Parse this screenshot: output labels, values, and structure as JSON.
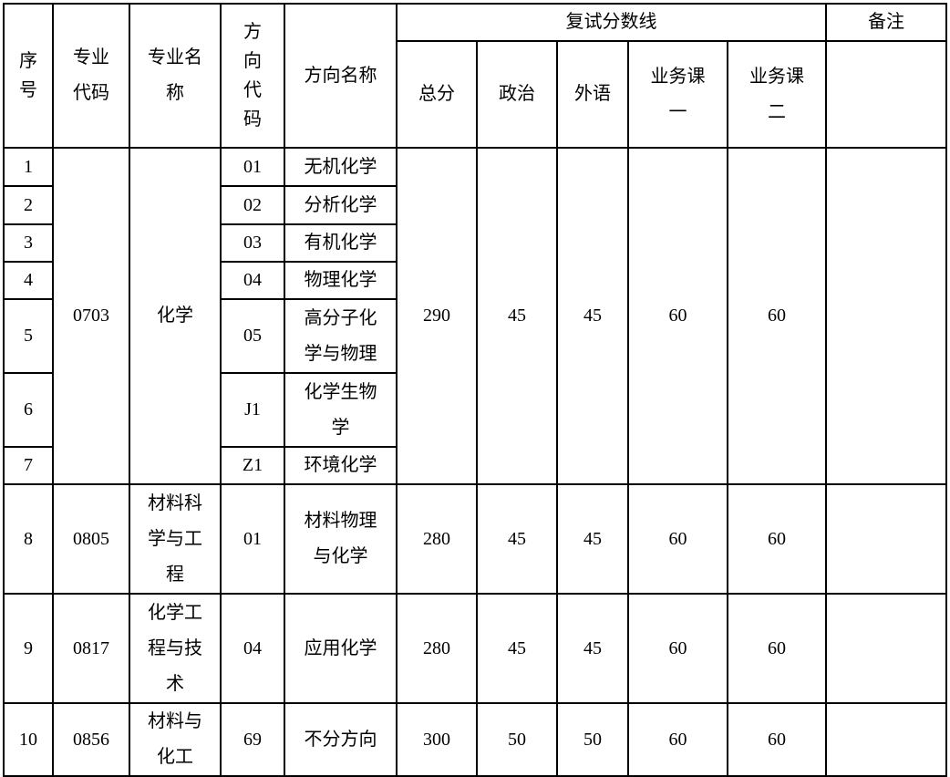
{
  "header": {
    "seq": "序\n号",
    "major_code": "专业\n代码",
    "major_name": "专业名\n称",
    "dir_code": "方\n向\n代\n码",
    "dir_name": "方向名称",
    "score_line": "复试分数线",
    "total": "总分",
    "politics": "政治",
    "foreign": "外语",
    "course1": "业务课\n一",
    "course2": "业务课\n二",
    "remark": "备注"
  },
  "groups": [
    {
      "major_code": "0703",
      "major_name": "化学",
      "total": "290",
      "politics": "45",
      "foreign": "45",
      "course1": "60",
      "course2": "60",
      "rows": [
        {
          "seq": "1",
          "dir_code": "01",
          "dir_name": "无机化学"
        },
        {
          "seq": "2",
          "dir_code": "02",
          "dir_name": "分析化学"
        },
        {
          "seq": "3",
          "dir_code": "03",
          "dir_name": "有机化学"
        },
        {
          "seq": "4",
          "dir_code": "04",
          "dir_name": "物理化学"
        },
        {
          "seq": "5",
          "dir_code": "05",
          "dir_name": "高分子化\n学与物理"
        },
        {
          "seq": "6",
          "dir_code": "J1",
          "dir_name": "化学生物\n学"
        },
        {
          "seq": "7",
          "dir_code": "Z1",
          "dir_name": "环境化学"
        }
      ]
    },
    {
      "major_code": "0805",
      "major_name": "材料科\n学与工\n程",
      "total": "280",
      "politics": "45",
      "foreign": "45",
      "course1": "60",
      "course2": "60",
      "rows": [
        {
          "seq": "8",
          "dir_code": "01",
          "dir_name": "材料物理\n与化学"
        }
      ]
    },
    {
      "major_code": "0817",
      "major_name": "化学工\n程与技\n术",
      "total": "280",
      "politics": "45",
      "foreign": "45",
      "course1": "60",
      "course2": "60",
      "rows": [
        {
          "seq": "9",
          "dir_code": "04",
          "dir_name": "应用化学"
        }
      ]
    },
    {
      "major_code": "0856",
      "major_name": "材料与\n化工",
      "total": "300",
      "politics": "50",
      "foreign": "50",
      "course1": "60",
      "course2": "60",
      "rows": [
        {
          "seq": "10",
          "dir_code": "69",
          "dir_name": "不分方向"
        }
      ]
    }
  ]
}
